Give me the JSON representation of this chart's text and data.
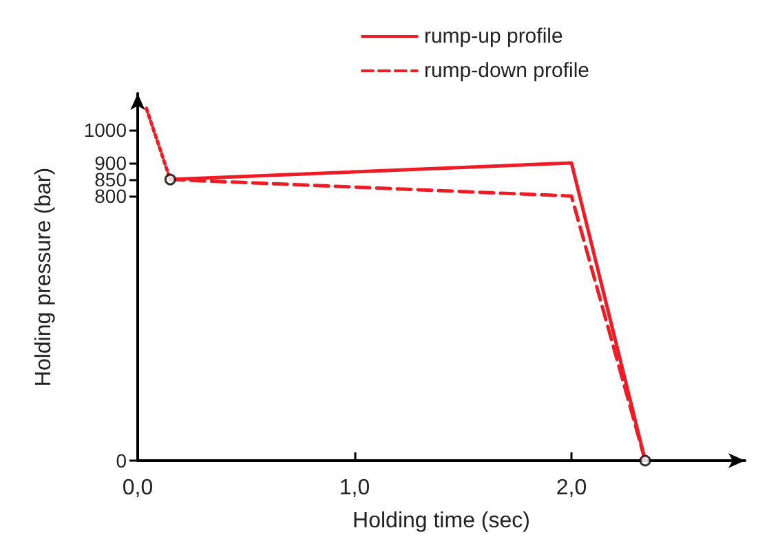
{
  "chart_data": {
    "type": "line",
    "xlabel": "Holding time (sec)",
    "ylabel": "Holding pressure (bar)",
    "xlim": [
      0,
      2.8
    ],
    "xticks": [
      {
        "value": 0,
        "label": "0,0"
      },
      {
        "value": 1,
        "label": "1,0"
      },
      {
        "value": 2,
        "label": "2,0"
      }
    ],
    "ylim": [
      0,
      1110
    ],
    "yticks": [
      0,
      800,
      850,
      900,
      1000
    ],
    "series": [
      {
        "name": "rump-up profile",
        "color": "#ee1c25",
        "line_style": "solid",
        "x": [
          0.15,
          2.0,
          2.34
        ],
        "values": [
          850,
          900,
          0
        ]
      },
      {
        "name": "rump-down profile",
        "color": "#ee1c25",
        "line_style": "dashed",
        "x": [
          0.15,
          2.0,
          2.34
        ],
        "values": [
          850,
          800,
          0
        ]
      },
      {
        "color": "#ee1c25",
        "line_style": "dotted",
        "x": [
          0.04,
          0.15
        ],
        "values": [
          1065,
          850
        ]
      },
      {
        "type": "scatter",
        "color": "#000000",
        "marker": "circle",
        "x": [
          0.15,
          2.34
        ],
        "values": [
          850,
          0
        ]
      }
    ],
    "grid": false,
    "legend": "top right",
    "marker": "none"
  }
}
